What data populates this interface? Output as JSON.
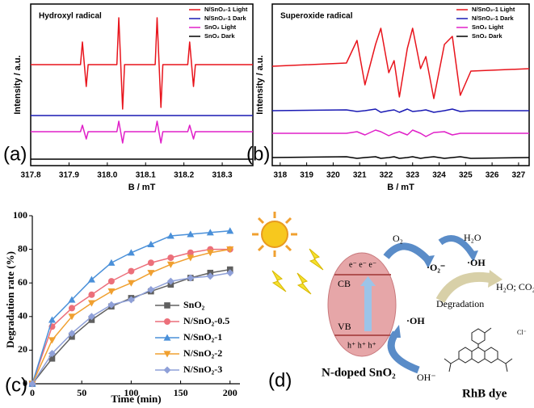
{
  "chart_data": [
    {
      "type": "line",
      "panel_label": "(a)",
      "title": "Hydroxyl radical",
      "x_label": "B / mT",
      "y_label": "Intensity / a.u.",
      "frame": true,
      "x": [
        317.8,
        317.93,
        317.935,
        317.945,
        317.95,
        318.025,
        318.03,
        318.04,
        318.045,
        318.125,
        318.13,
        318.14,
        318.145,
        318.21,
        318.215,
        318.225,
        318.23,
        318.38
      ],
      "series": [
        {
          "name": "N/SnO₂-1 Light",
          "color": "#e8141c",
          "values": [
            62.5,
            62.5,
            76.5,
            49,
            62.5,
            62.5,
            91.5,
            35,
            62.5,
            62.5,
            91.5,
            36,
            62.5,
            62.5,
            76.5,
            49,
            62.5,
            62.5
          ]
        },
        {
          "name": "N/SnO₂-1 Dark",
          "color": "#1a1ab4",
          "values": [
            31,
            31,
            31,
            31,
            31,
            31,
            31,
            31,
            31,
            31,
            31,
            31,
            31,
            31,
            31,
            31,
            31,
            31
          ]
        },
        {
          "name": "SnO₂ Light",
          "color": "#e020c8",
          "values": [
            21,
            21,
            25,
            16.5,
            21,
            21,
            27.5,
            14,
            21,
            21,
            27.5,
            14,
            21,
            21,
            25,
            16.5,
            21,
            21
          ]
        },
        {
          "name": "SnO₂ Dark",
          "color": "#000000",
          "values": [
            4,
            4,
            4,
            4,
            4,
            4,
            4,
            4,
            4,
            4,
            4,
            4,
            4,
            4,
            4,
            4,
            4,
            4
          ]
        }
      ],
      "xlim": [
        317.8,
        318.38
      ],
      "xticks": [
        317.8,
        317.9,
        {
          "value": 318,
          "label": "318.0"
        },
        318.1,
        318.2,
        318.3
      ],
      "ylim": [
        0,
        100
      ]
    },
    {
      "type": "line",
      "panel_label": "(b)",
      "title": "Superoxide radical",
      "x_label": "B / mT",
      "y_label": "Intensity / a.u.",
      "frame": true,
      "x": [
        317.7,
        320.5,
        320.9,
        321.2,
        321.6,
        321.8,
        322.1,
        322.3,
        322.5,
        322.8,
        323.0,
        323.3,
        323.5,
        323.8,
        324.2,
        324.5,
        324.8,
        325.2,
        327.4
      ],
      "series": [
        {
          "name": "N/SnO₂-1 Light",
          "color": "#e8141c",
          "values": [
            61.5,
            63.5,
            77.5,
            50,
            75,
            85,
            57.5,
            65,
            42.5,
            72.5,
            85,
            60,
            67.5,
            41.5,
            75,
            80,
            43.5,
            58.5,
            60
          ]
        },
        {
          "name": "N/SnO₂-1 Dark",
          "color": "#1a1ab4",
          "values": [
            34,
            34.5,
            33.5,
            34,
            35,
            33,
            34,
            34.5,
            33,
            35,
            33.5,
            34,
            34.5,
            33,
            34,
            35,
            33.5,
            34,
            34
          ]
        },
        {
          "name": "SnO₂ Light",
          "color": "#e020c8",
          "values": [
            20,
            20,
            21,
            19,
            22,
            21,
            18.5,
            20,
            21,
            19,
            22,
            20,
            18,
            20.5,
            21,
            19,
            20,
            20,
            20
          ]
        },
        {
          "name": "SnO₂ Dark",
          "color": "#000000",
          "values": [
            5,
            5.5,
            4.5,
            5,
            5.5,
            4.5,
            5,
            5.5,
            4.5,
            5,
            5.5,
            4.5,
            5,
            5.5,
            4.5,
            5,
            5.5,
            4.5,
            5
          ]
        }
      ],
      "xlim": [
        317.7,
        327.4
      ],
      "xticks": [
        318,
        319,
        320,
        321,
        322,
        323,
        324,
        325,
        326,
        327
      ],
      "ylim": [
        0,
        100
      ]
    },
    {
      "type": "line",
      "panel_label": "(c)",
      "x_label": "Time (min)",
      "y_label": "Degradation rate (%)",
      "frame": false,
      "x": [
        0,
        20,
        40,
        60,
        80,
        100,
        120,
        140,
        160,
        180,
        200
      ],
      "series": [
        {
          "name": "SnO₂",
          "color": "#606060",
          "marker": "square",
          "values": [
            0,
            15,
            28,
            38,
            46,
            51,
            55,
            59,
            63,
            66,
            68
          ]
        },
        {
          "name": "N/SnO₂-0.5",
          "color": "#ec6f7a",
          "marker": "circle",
          "values": [
            0,
            34,
            45,
            53,
            61,
            67,
            72,
            75,
            78,
            80,
            80
          ]
        },
        {
          "name": "N/SnO₂-1",
          "color": "#4a90d9",
          "marker": "triangle",
          "values": [
            0,
            38,
            50,
            62,
            72,
            78,
            83,
            88,
            89,
            90,
            91
          ]
        },
        {
          "name": "N/SnO₂-2",
          "color": "#f0a030",
          "marker": "triangle-down",
          "values": [
            0,
            26,
            40,
            48,
            55,
            60,
            66,
            71,
            75,
            78,
            80
          ]
        },
        {
          "name": "N/SnO₂-3",
          "color": "#8fa0d8",
          "marker": "diamond",
          "values": [
            0,
            18,
            30,
            40,
            47,
            50,
            56,
            61,
            63,
            64,
            66
          ]
        }
      ],
      "xlim": [
        0,
        210
      ],
      "xticks": [
        0,
        50,
        100,
        150,
        200
      ],
      "ylim": [
        0,
        100
      ],
      "yticks": [
        0,
        20,
        40,
        60,
        80,
        100
      ]
    }
  ],
  "diagram": {
    "panel_label": "(d)",
    "o2": "O₂",
    "superoxide": "·O₂⁻",
    "h2o": "H₂O",
    "hydroxyl_top": "·OH",
    "electrons": "e⁻ e⁻ e⁻",
    "cb": "CB",
    "vb": "VB",
    "holes": "h⁺ h⁺ h⁺",
    "degradation": "Degradation",
    "products": "H₂O; CO₂",
    "hydroxyl_bottom": "·OH",
    "hydroxide": "OH⁻",
    "catalyst": "N-doped SnO₂",
    "dye": "RhB  dye",
    "counter_ion": "Cl⁻"
  }
}
